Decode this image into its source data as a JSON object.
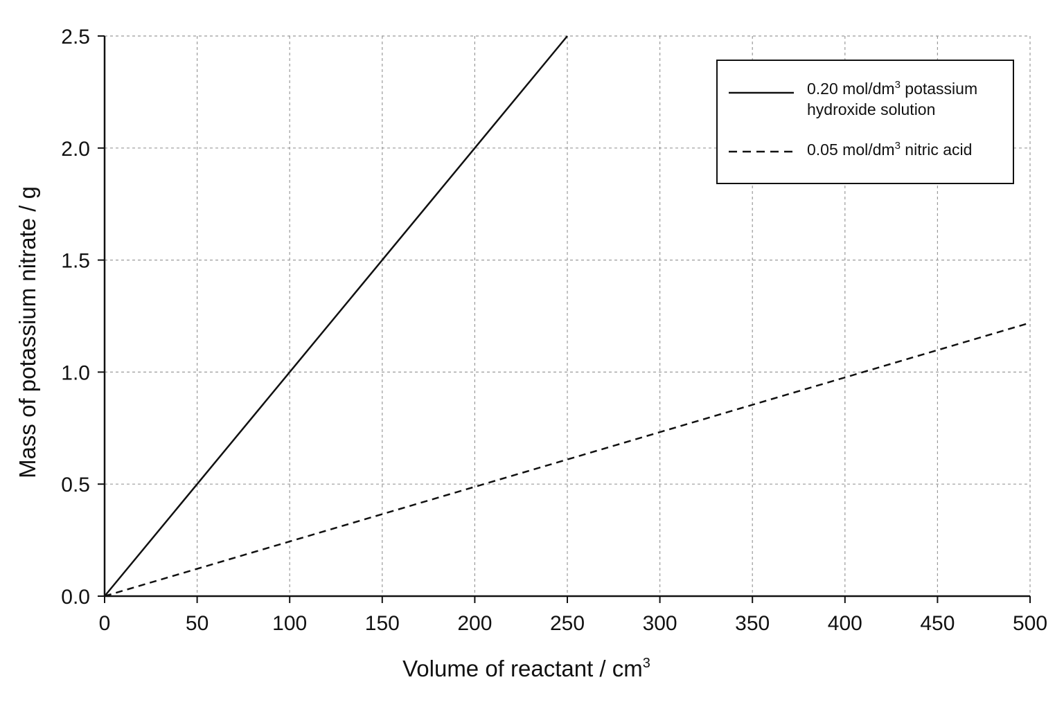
{
  "chart_data": {
    "type": "line",
    "xlabel": "Volume of reactant / cm",
    "xlabel_sup": "3",
    "ylabel": "Mass of potassium nitrate / g",
    "xlim": [
      0,
      500
    ],
    "ylim": [
      0,
      2.5
    ],
    "x_ticks": [
      "0",
      "50",
      "100",
      "150",
      "200",
      "250",
      "300",
      "350",
      "400",
      "450",
      "500"
    ],
    "y_ticks": [
      "0.0",
      "0.5",
      "1.0",
      "1.5",
      "2.0",
      "2.5"
    ],
    "grid": true,
    "legend_position": "top-right",
    "series": [
      {
        "name": "0.20 mol/dm³ potassium hydroxide solution",
        "legend_line1_a": "0.20 mol/dm",
        "legend_line1_sup": "3",
        "legend_line1_b": " potassium",
        "legend_line2": "hydroxide solution",
        "style": "solid",
        "x": [
          0,
          50,
          100,
          150,
          200,
          250
        ],
        "y": [
          0.0,
          0.5,
          1.0,
          1.5,
          2.0,
          2.5
        ]
      },
      {
        "name": "0.05 mol/dm³ nitric acid",
        "legend_line1_a": "0.05 mol/dm",
        "legend_line1_sup": "3",
        "legend_line1_b": " nitric acid",
        "style": "dashed",
        "x": [
          0,
          500
        ],
        "y": [
          0.0,
          1.22
        ]
      }
    ]
  }
}
